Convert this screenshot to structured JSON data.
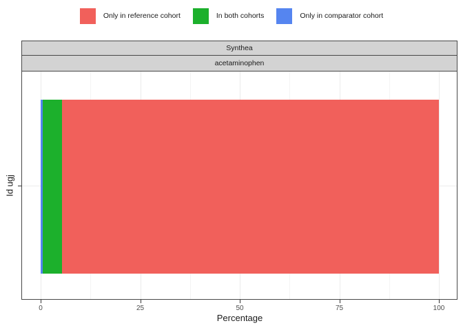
{
  "axes": {
    "x_title": "Percentage",
    "y_title": "Id ugj"
  },
  "theme": {
    "strip_bg": "#d3d3d3",
    "strip_border": "#474747",
    "panel_border": "#474747",
    "panel_bg": "#ffffff",
    "grid_major": "#ebebeb",
    "grid_minor": "#f4f4f4",
    "tick_color": "#333333",
    "tick_label_color": "#4d4d4d",
    "axis_title_color": "#1a1a1a"
  },
  "chart_data": {
    "type": "bar",
    "orientation": "horizontal",
    "stacked": true,
    "title": "",
    "xlabel": "Percentage",
    "ylabel": "Id ugj",
    "categories": [
      "Id ugj"
    ],
    "series": [
      {
        "name": "Only in comparator cohort",
        "color": "#5585f0",
        "values": [
          0.6
        ]
      },
      {
        "name": "In both cohorts",
        "color": "#1cb02c",
        "values": [
          4.8
        ]
      },
      {
        "name": "Only in reference cohort",
        "color": "#f1605b",
        "values": [
          94.6
        ]
      }
    ],
    "legend_order": [
      "Only in reference cohort",
      "In both cohorts",
      "Only in comparator cohort"
    ],
    "facet_rows": [
      "Synthea",
      "acetaminophen"
    ],
    "xlim": [
      0,
      100
    ],
    "x_major_ticks": [
      0,
      25,
      50,
      75,
      100
    ],
    "x_minor_ticks": [
      12.5,
      37.5,
      62.5,
      87.5
    ],
    "grid": true,
    "legend_position": "top"
  }
}
